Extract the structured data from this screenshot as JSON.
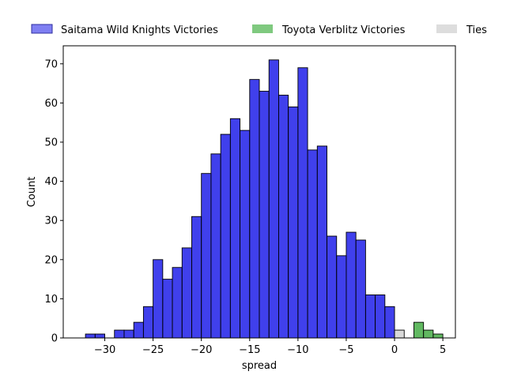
{
  "chart_data": {
    "type": "bar",
    "title": "",
    "xlabel": "spread",
    "ylabel": "Count",
    "xlim": [
      -34.3,
      6.3
    ],
    "ylim": [
      0,
      74.6
    ],
    "bin_width": 1,
    "grid": false,
    "legend_position": "top, above plot",
    "x_ticks": [
      -30,
      -25,
      -20,
      -15,
      -10,
      -5,
      0,
      5
    ],
    "x_tick_labels": [
      "−30",
      "−25",
      "−20",
      "−15",
      "−10",
      "−5",
      "0",
      "5"
    ],
    "y_ticks": [
      0,
      10,
      20,
      30,
      40,
      50,
      60,
      70
    ],
    "y_tick_labels": [
      "0",
      "10",
      "20",
      "30",
      "40",
      "50",
      "60",
      "70"
    ],
    "series": [
      {
        "name": "Saitama Wild Knights Victories",
        "color": "#0000e6",
        "legend_color": "#7f7ff2",
        "bins": [
          {
            "x": -33,
            "count": 0
          },
          {
            "x": -32,
            "count": 1
          },
          {
            "x": -31,
            "count": 1
          },
          {
            "x": -30,
            "count": 0
          },
          {
            "x": -29,
            "count": 2
          },
          {
            "x": -28,
            "count": 2
          },
          {
            "x": -27,
            "count": 4
          },
          {
            "x": -26,
            "count": 8
          },
          {
            "x": -25,
            "count": 20
          },
          {
            "x": -24,
            "count": 15
          },
          {
            "x": -23,
            "count": 18
          },
          {
            "x": -22,
            "count": 23
          },
          {
            "x": -21,
            "count": 31
          },
          {
            "x": -20,
            "count": 42
          },
          {
            "x": -19,
            "count": 47
          },
          {
            "x": -18,
            "count": 52
          },
          {
            "x": -17,
            "count": 56
          },
          {
            "x": -16,
            "count": 53
          },
          {
            "x": -15,
            "count": 66
          },
          {
            "x": -14,
            "count": 63
          },
          {
            "x": -13,
            "count": 71
          },
          {
            "x": -12,
            "count": 62
          },
          {
            "x": -11,
            "count": 59
          },
          {
            "x": -10,
            "count": 69
          },
          {
            "x": -9,
            "count": 48
          },
          {
            "x": -8,
            "count": 49
          },
          {
            "x": -7,
            "count": 26
          },
          {
            "x": -6,
            "count": 21
          },
          {
            "x": -5,
            "count": 27
          },
          {
            "x": -4,
            "count": 25
          },
          {
            "x": -3,
            "count": 11
          },
          {
            "x": -2,
            "count": 11
          },
          {
            "x": -1,
            "count": 8
          }
        ]
      },
      {
        "name": "Toyota Verblitz Victories",
        "color": "#2ca02c",
        "legend_color": "#7fc97f",
        "bins": [
          {
            "x": 2,
            "count": 4
          },
          {
            "x": 3,
            "count": 2
          },
          {
            "x": 4,
            "count": 1
          }
        ]
      },
      {
        "name": "Ties",
        "color": "#cccccc",
        "legend_color": "#dddddd",
        "bins": [
          {
            "x": 0,
            "count": 2
          }
        ]
      }
    ]
  }
}
